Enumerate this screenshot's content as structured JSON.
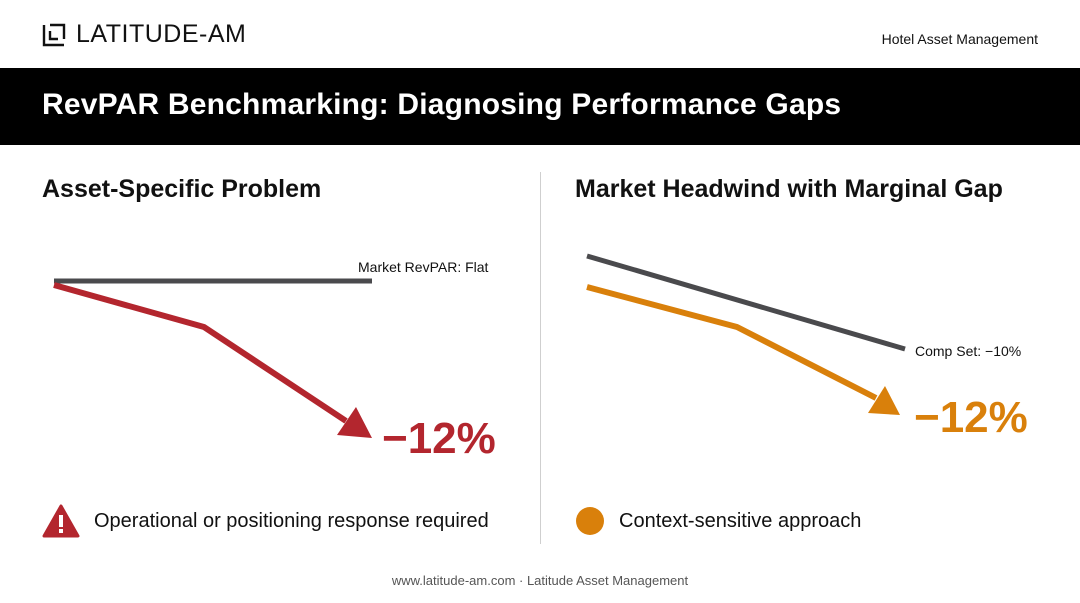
{
  "header": {
    "logo_text": "LATITUDE-AM",
    "right_text": "Hotel Asset Management"
  },
  "title": "RevPAR Benchmarking: Diagnosing Performance Gaps",
  "left_panel": {
    "heading": "Asset-Specific Problem",
    "reference_label": "Market RevPAR: Flat",
    "change_value": "−12%",
    "note_icon": "warning-triangle-icon",
    "note_text": "Operational or positioning response required",
    "colors": {
      "reference": "#4a4a4d",
      "asset": "#b3262e"
    }
  },
  "right_panel": {
    "heading": "Market Headwind with Marginal Gap",
    "reference_label": "Comp Set: −10%",
    "change_value": "−12%",
    "note_icon": "orange-dot-icon",
    "note_text": "Context-sensitive approach",
    "colors": {
      "reference": "#4a4a4d",
      "asset": "#d9800b"
    }
  },
  "footer": "www.latitude-am.com · Latitude Asset Management"
}
